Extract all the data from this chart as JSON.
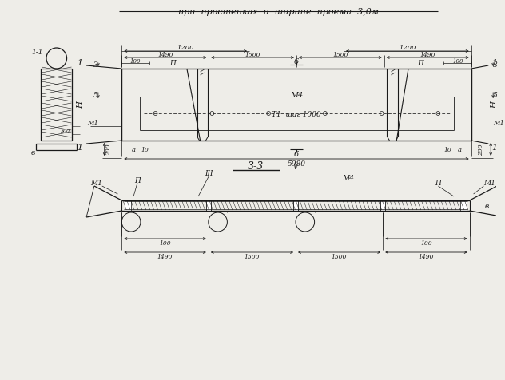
{
  "bg_color": "#eeede8",
  "line_color": "#1a1a1a",
  "title": "при  простенках  и  ширине  проема  3,0м",
  "label_11": "1-1",
  "label_33": "3-3",
  "label_t1": "Т1  шаг 1000",
  "dims_top_row1": [
    "1200",
    "1200"
  ],
  "dims_top_row2": [
    "1490",
    "1500",
    "1500",
    "1490"
  ],
  "dim_5980": "5980",
  "dim_100": "100",
  "dim_200": "200",
  "dim_a": "а",
  "dim_10": "10",
  "dim_b": "б",
  "label_3": "3",
  "label_5": "5",
  "label_M1": "М1",
  "label_M4": "М4",
  "label_P": "П",
  "label_6": "6",
  "label_H": "Н",
  "label_v": "в",
  "label_II": "П",
  "label_III": "III",
  "label_V": "V",
  "label_1": "1"
}
